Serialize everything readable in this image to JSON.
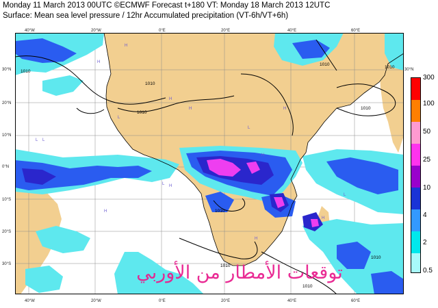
{
  "header": {
    "line1": "Monday 11 March 2013 00UTC ©ECMWF Forecast t+180 VT: Monday 18 March 2013 12UTC",
    "line2": "Surface: Mean sea level pressure / 12hr Accumulated precipitation (VT-6h/VT+6h)"
  },
  "axes": {
    "lon_labels": [
      "40°W",
      "20°W",
      "0°E",
      "20°E",
      "40°E",
      "60°E"
    ],
    "lat_labels": [
      "30°N",
      "20°N",
      "10°N",
      "0°N",
      "10°S",
      "20°S",
      "30°S"
    ],
    "right_corner_label": "30°N"
  },
  "map": {
    "isobar_labels": [
      "1010",
      "1010",
      "1010",
      "1010",
      "1010",
      "1010",
      "1010",
      "1010",
      "1010",
      "1010"
    ],
    "pressure_center_marks": [
      "H",
      "H",
      "H",
      "H",
      "L",
      "L",
      "L",
      "H",
      "L",
      "H",
      "H",
      "H",
      "L",
      "L",
      "H",
      "H"
    ],
    "colors": {
      "ocean": "#ffffff",
      "land": "#f2cf90",
      "precip_light": "#5ee8ee",
      "precip_mid": "#2a5cf0",
      "precip_heavy": "#2a26cc",
      "precip_extreme": "#ee3ef0"
    }
  },
  "legend": {
    "levels": [
      "300",
      "100",
      "50",
      "25",
      "10",
      "4",
      "2",
      "0.5"
    ],
    "colors": [
      "#ff0000",
      "#ff7f00",
      "#ff9ad0",
      "#ff33ee",
      "#9900cc",
      "#1a33d6",
      "#3399ff",
      "#00e8ec",
      "#a8fafb"
    ]
  },
  "watermark": "توقعات الأمطار من الأوربي"
}
